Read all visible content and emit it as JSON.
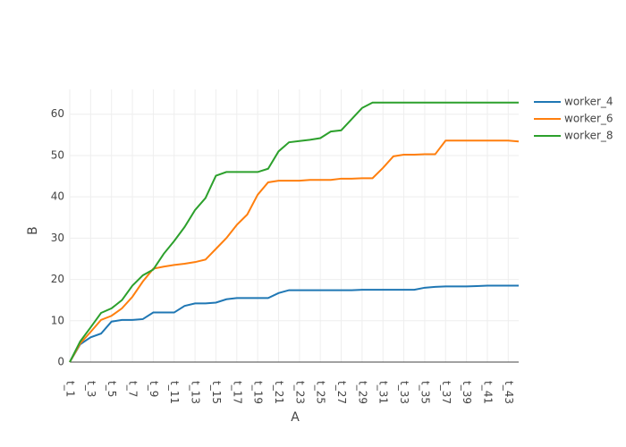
{
  "chart_data": {
    "type": "line",
    "xlabel": "A",
    "ylabel": "B",
    "categories": [
      "t_1",
      null,
      "t_3",
      null,
      "t_5",
      null,
      "t_7",
      null,
      "t_9",
      null,
      "t_11",
      null,
      "t_13",
      null,
      "t_15",
      null,
      "t_17",
      null,
      "t_19",
      null,
      "t_21",
      null,
      "t_23",
      null,
      "t_25",
      null,
      "t_27",
      null,
      "t_29",
      null,
      "t_31",
      null,
      "t_33",
      null,
      "t_35",
      null,
      "t_37",
      null,
      "t_39",
      null,
      "t_41",
      null,
      "t_43",
      null
    ],
    "series": [
      {
        "name": "worker_4",
        "color": "#1f77b4",
        "values": [
          0,
          4.3,
          6,
          6.9,
          9.8,
          10.2,
          10.2,
          10.4,
          12,
          12,
          12,
          13.6,
          14.2,
          14.2,
          14.4,
          15.2,
          15.5,
          15.5,
          15.5,
          15.5,
          16.7,
          17.4,
          17.4,
          17.4,
          17.4,
          17.4,
          17.4,
          17.4,
          17.5,
          17.5,
          17.5,
          17.5,
          17.5,
          17.5,
          18,
          18.2,
          18.3,
          18.3,
          18.3,
          18.4,
          18.5,
          18.5,
          18.5,
          18.5
        ]
      },
      {
        "name": "worker_6",
        "color": "#ff7f0e",
        "values": [
          0,
          4.5,
          7.3,
          10.2,
          11.2,
          13,
          15.8,
          19.5,
          22.6,
          23.1,
          23.5,
          23.8,
          24.2,
          24.8,
          27.4,
          30,
          33.2,
          35.7,
          40.5,
          43.5,
          43.9,
          43.9,
          43.9,
          44.1,
          44.1,
          44.1,
          44.4,
          44.4,
          44.5,
          44.5,
          47,
          49.8,
          50.2,
          50.2,
          50.3,
          50.3,
          53.6,
          53.6,
          53.6,
          53.6,
          53.6,
          53.6,
          53.6,
          53.4
        ]
      },
      {
        "name": "worker_8",
        "color": "#2ca02c",
        "values": [
          0,
          5,
          8.4,
          11.9,
          13,
          15,
          18.5,
          21,
          22.4,
          26.2,
          29.3,
          32.7,
          36.8,
          39.7,
          45.1,
          46,
          46,
          46,
          46,
          46.8,
          51,
          53.2,
          53.5,
          53.8,
          54.2,
          55.8,
          56.1,
          58.8,
          61.5,
          62.8,
          62.8,
          62.8,
          62.8,
          62.8,
          62.8,
          62.8,
          62.8,
          62.8,
          62.8,
          62.8,
          62.8,
          62.8,
          62.8,
          62.8
        ]
      }
    ],
    "ylim": [
      0,
      66
    ],
    "yticks": [
      0,
      10,
      20,
      30,
      40,
      50,
      60
    ],
    "grid": true,
    "legend": "top-right"
  }
}
